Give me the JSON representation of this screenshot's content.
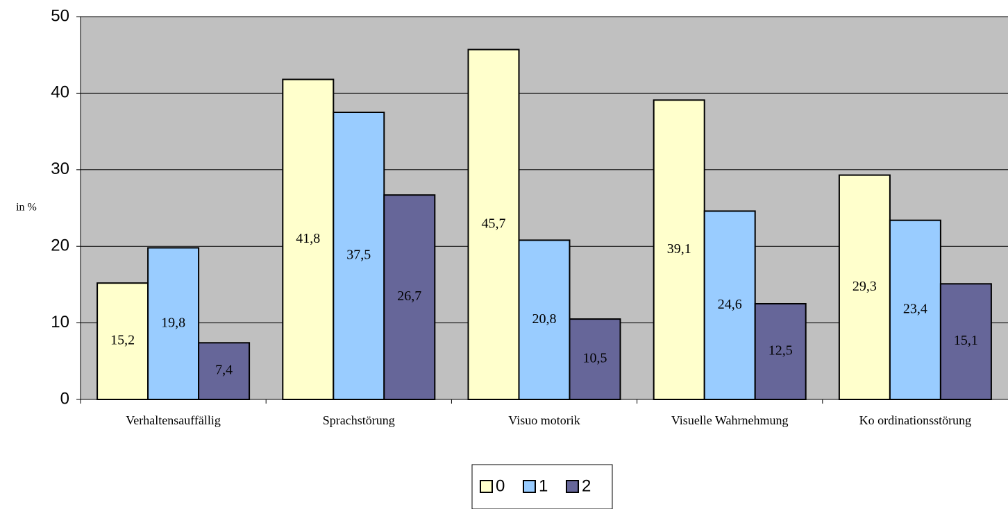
{
  "chart_data": {
    "type": "bar",
    "ylabel": "in %",
    "categories": [
      "Verhaltensauffällig",
      "Sprachstörung",
      "Visuo motorik",
      "Visuelle Wahrnehmung",
      "Ko ordinationsstörung"
    ],
    "series": [
      {
        "name": "0",
        "color": "#FFFFCC",
        "values": [
          15.2,
          41.8,
          45.7,
          39.1,
          29.3
        ],
        "value_labels": [
          "15,2",
          "41,8",
          "45,7",
          "39,1",
          "29,3"
        ]
      },
      {
        "name": "1",
        "color": "#99CCFF",
        "values": [
          19.8,
          37.5,
          20.8,
          24.6,
          23.4
        ],
        "value_labels": [
          "19,8",
          "37,5",
          "20,8",
          "24,6",
          "23,4"
        ]
      },
      {
        "name": "2",
        "color": "#666699",
        "values": [
          7.4,
          26.7,
          10.5,
          12.5,
          15.1
        ],
        "value_labels": [
          "7,4",
          "26,7",
          "10,5",
          "12,5",
          "15,1"
        ]
      }
    ],
    "ylim": [
      0,
      50
    ],
    "yticks": [
      0,
      10,
      20,
      30,
      40,
      50
    ],
    "grid": true,
    "plot_background": "#C0C0C0",
    "legend": "bottom"
  }
}
